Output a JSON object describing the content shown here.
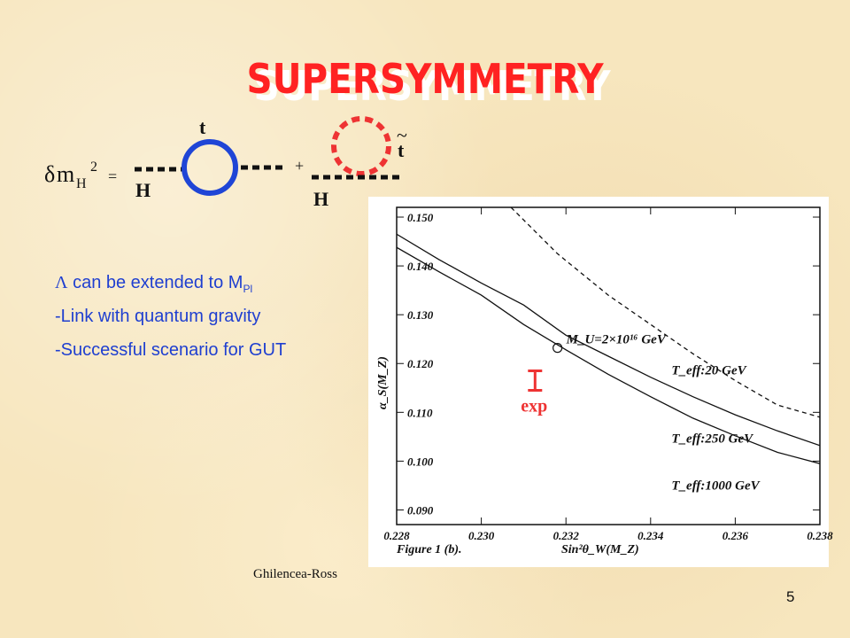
{
  "slide": {
    "title": "SUPERSYMMETRY",
    "page_number": "5",
    "credit": "Ghilencea-Ross"
  },
  "diagram": {
    "lhs_delta": "δ",
    "lhs_m": "m",
    "lhs_sub": "H",
    "lhs_sup": "2",
    "equals": "=",
    "plus": "+",
    "top_label": "t",
    "stop_label": "t",
    "stop_tilde": "~",
    "line1_label": "H",
    "line2_label": "H",
    "colors": {
      "top_loop": "#1f45d6",
      "stop_loop": "#ee3333",
      "lines": "#111111"
    }
  },
  "bullets": {
    "b1_symbol": "Λ",
    "b1_text": " can be extended to M",
    "b1_sub": "Pl",
    "b2": "-Link with quantum gravity",
    "b3": "-Successful scenario for GUT"
  },
  "chart_data": {
    "type": "line",
    "ylabel": "α_S(M_Z)",
    "xlabel": "Sin²θ_W(M_Z)",
    "caption": "Figure 1 (b).",
    "xlim": [
      0.228,
      0.238
    ],
    "ylim": [
      0.087,
      0.152
    ],
    "x_ticks": [
      "0.228",
      "0.230",
      "0.232",
      "0.234",
      "0.236",
      "0.238"
    ],
    "y_ticks": [
      "0.090",
      "0.100",
      "0.110",
      "0.120",
      "0.130",
      "0.140",
      "0.150"
    ],
    "annotation": "M_U=2×10¹⁶ GeV",
    "annotation_point": {
      "x": 0.2318,
      "y": 0.1232
    },
    "exp_label": "exp",
    "exp_bar": {
      "x": 0.2315,
      "y_low": 0.1145,
      "y_high": 0.1185
    },
    "series": [
      {
        "name": "T_eff:20 GeV",
        "style": "dashed",
        "x": [
          0.2307,
          0.2318,
          0.233,
          0.234,
          0.235,
          0.236,
          0.237,
          0.238
        ],
        "y": [
          0.152,
          0.1425,
          0.134,
          0.128,
          0.122,
          0.1165,
          0.1115,
          0.109
        ]
      },
      {
        "name": "T_eff:250 GeV",
        "style": "solid",
        "x": [
          0.228,
          0.229,
          0.23,
          0.231,
          0.232,
          0.233,
          0.234,
          0.235,
          0.236,
          0.237,
          0.238
        ],
        "y": [
          0.1465,
          0.1413,
          0.1365,
          0.132,
          0.1258,
          0.1215,
          0.1172,
          0.1132,
          0.1095,
          0.1062,
          0.1032
        ]
      },
      {
        "name": "T_eff:1000 GeV",
        "style": "solid",
        "x": [
          0.228,
          0.229,
          0.23,
          0.231,
          0.232,
          0.233,
          0.234,
          0.235,
          0.236,
          0.237,
          0.238
        ],
        "y": [
          0.1438,
          0.1388,
          0.134,
          0.128,
          0.1228,
          0.1178,
          0.1132,
          0.1088,
          0.1052,
          0.1018,
          0.0995
        ]
      }
    ]
  }
}
